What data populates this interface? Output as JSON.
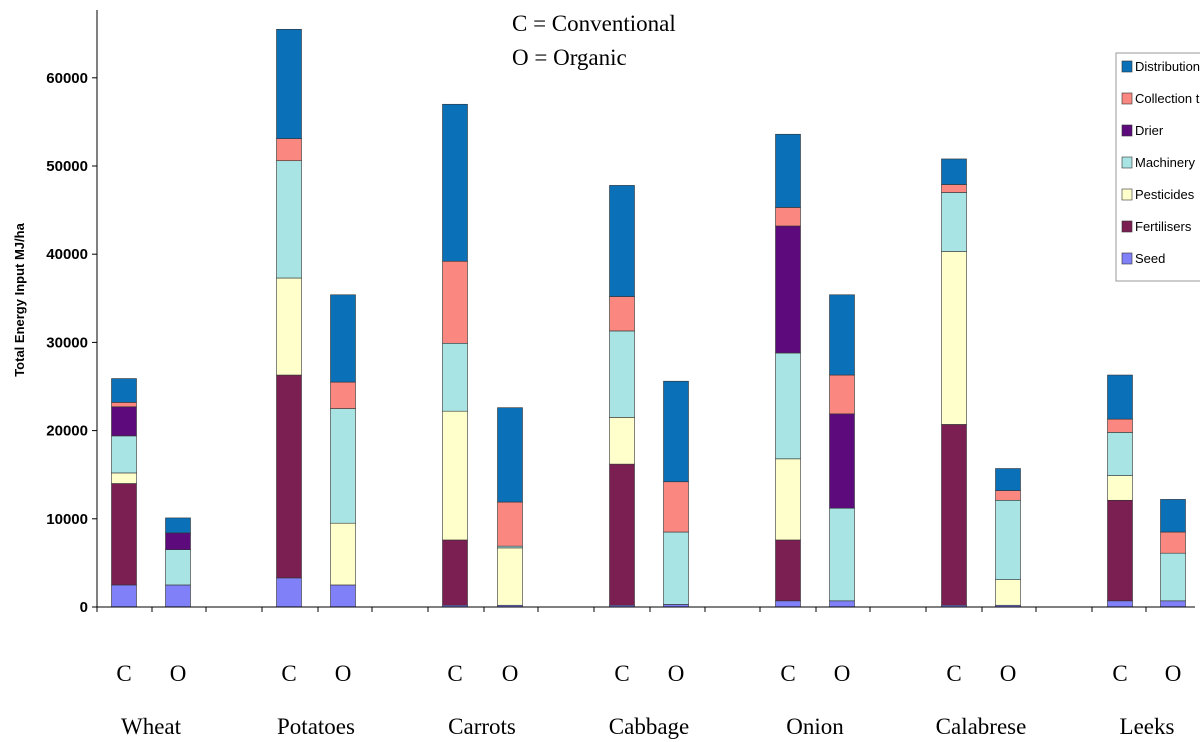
{
  "chart_data": {
    "type": "bar",
    "stacked": true,
    "ylabel": "Total Energy Input MJ/ha",
    "ylim": [
      0,
      70000
    ],
    "yticks": [
      0,
      10000,
      20000,
      30000,
      40000,
      50000,
      60000
    ],
    "annotations": [
      "C = Conventional",
      "O = Organic"
    ],
    "legend_position": "top-right",
    "legend_order": [
      "Distribution",
      "Collection transport",
      "Drier",
      "Machinery",
      "Pesticides",
      "Fertilisers",
      "Seed"
    ],
    "colors": {
      "Seed": "#8080f8",
      "Fertilisers": "#7b1f52",
      "Pesticides": "#ffffcc",
      "Machinery": "#a8e4e4",
      "Drier": "#5c0a7c",
      "Collection transport": "#fa8880",
      "Distribution": "#0a70b8"
    },
    "crops": [
      "Wheat",
      "Potatoes",
      "Carrots",
      "Cabbage",
      "Onion",
      "Calabrese",
      "Leeks"
    ],
    "system_labels": [
      "C",
      "O"
    ],
    "stack_order": [
      "Seed",
      "Fertilisers",
      "Pesticides",
      "Machinery",
      "Drier",
      "Collection transport",
      "Distribution"
    ],
    "bars": [
      {
        "crop": "Wheat",
        "system": "C",
        "values": {
          "Seed": 2500,
          "Fertilisers": 11500,
          "Pesticides": 1200,
          "Machinery": 4200,
          "Drier": 3300,
          "Collection transport": 500,
          "Distribution": 2700
        }
      },
      {
        "crop": "Wheat",
        "system": "O",
        "values": {
          "Seed": 2500,
          "Fertilisers": 0,
          "Pesticides": 0,
          "Machinery": 4000,
          "Drier": 1900,
          "Collection transport": 0,
          "Distribution": 1700
        }
      },
      {
        "crop": "Potatoes",
        "system": "C",
        "values": {
          "Seed": 3300,
          "Fertilisers": 23000,
          "Pesticides": 11000,
          "Machinery": 13300,
          "Drier": 0,
          "Collection transport": 2500,
          "Distribution": 12400
        }
      },
      {
        "crop": "Potatoes",
        "system": "O",
        "values": {
          "Seed": 2500,
          "Fertilisers": 0,
          "Pesticides": 7000,
          "Machinery": 13000,
          "Drier": 0,
          "Collection transport": 3000,
          "Distribution": 9900
        }
      },
      {
        "crop": "Carrots",
        "system": "C",
        "values": {
          "Seed": 200,
          "Fertilisers": 7400,
          "Pesticides": 14600,
          "Machinery": 7700,
          "Drier": 0,
          "Collection transport": 9300,
          "Distribution": 17800
        }
      },
      {
        "crop": "Carrots",
        "system": "O",
        "values": {
          "Seed": 200,
          "Fertilisers": 0,
          "Pesticides": 6500,
          "Machinery": 200,
          "Drier": 0,
          "Collection transport": 5000,
          "Distribution": 10700
        }
      },
      {
        "crop": "Cabbage",
        "system": "C",
        "values": {
          "Seed": 200,
          "Fertilisers": 16000,
          "Pesticides": 5300,
          "Machinery": 9800,
          "Drier": 0,
          "Collection transport": 3900,
          "Distribution": 12600
        }
      },
      {
        "crop": "Cabbage",
        "system": "O",
        "values": {
          "Seed": 300,
          "Fertilisers": 0,
          "Pesticides": 0,
          "Machinery": 8200,
          "Drier": 0,
          "Collection transport": 5700,
          "Distribution": 11400
        }
      },
      {
        "crop": "Onion",
        "system": "C",
        "values": {
          "Seed": 700,
          "Fertilisers": 6900,
          "Pesticides": 9200,
          "Machinery": 12000,
          "Drier": 14400,
          "Collection transport": 2100,
          "Distribution": 8300
        }
      },
      {
        "crop": "Onion",
        "system": "O",
        "values": {
          "Seed": 700,
          "Fertilisers": 0,
          "Pesticides": 0,
          "Machinery": 10500,
          "Drier": 10700,
          "Collection transport": 4400,
          "Distribution": 9100
        }
      },
      {
        "crop": "Calabrese",
        "system": "C",
        "values": {
          "Seed": 200,
          "Fertilisers": 20500,
          "Pesticides": 19600,
          "Machinery": 6700,
          "Drier": 0,
          "Collection transport": 900,
          "Distribution": 2900
        }
      },
      {
        "crop": "Calabrese",
        "system": "O",
        "values": {
          "Seed": 200,
          "Fertilisers": 0,
          "Pesticides": 2900,
          "Machinery": 9000,
          "Drier": 0,
          "Collection transport": 1100,
          "Distribution": 2500
        }
      },
      {
        "crop": "Leeks",
        "system": "C",
        "values": {
          "Seed": 700,
          "Fertilisers": 11400,
          "Pesticides": 2800,
          "Machinery": 4900,
          "Drier": 0,
          "Collection transport": 1500,
          "Distribution": 5000
        }
      },
      {
        "crop": "Leeks",
        "system": "O",
        "values": {
          "Seed": 700,
          "Fertilisers": 0,
          "Pesticides": 0,
          "Machinery": 5400,
          "Drier": 0,
          "Collection transport": 2400,
          "Distribution": 3700
        }
      }
    ]
  }
}
